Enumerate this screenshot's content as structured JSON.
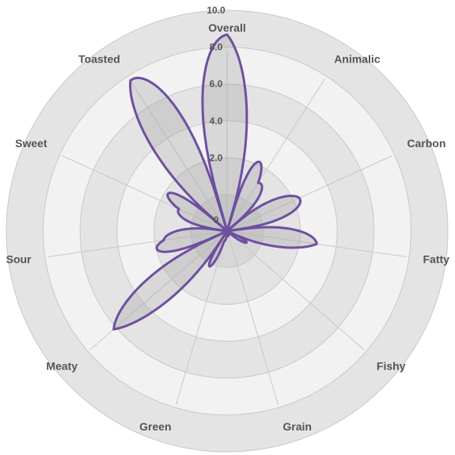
{
  "chart_data": {
    "type": "radar",
    "axes": [
      "Overall",
      "Animalic",
      "Carbon",
      "Fatty",
      "Fishy",
      "Grain",
      "Green",
      "Meaty",
      "Sour",
      "Sweet",
      "Toasted"
    ],
    "series": [
      {
        "values": [
          8.9,
          2.6,
          3.6,
          4.1,
          0.2,
          0.2,
          0.5,
          6.8,
          2.9,
          2.4,
          8.1
        ]
      }
    ],
    "rlim": [
      0,
      10
    ],
    "ticks": [
      {
        "value": 0,
        "label": "0"
      },
      {
        "value": 2,
        "label": "2.0"
      },
      {
        "value": 4,
        "label": "4.0"
      },
      {
        "value": 6,
        "label": "6.0"
      },
      {
        "value": 8,
        "label": "8.0"
      },
      {
        "value": 10,
        "label": "10.0"
      }
    ],
    "ring_fills": [
      "#d7d7d7",
      "#f2f2f2",
      "#e4e4e4",
      "#f2f2f2",
      "#e4e4e4",
      "#f2f2f2"
    ],
    "grid_color": "#c8c8c8",
    "series_color": "#6f4fa0",
    "series_fill": "rgba(150,150,155,0.28)"
  }
}
